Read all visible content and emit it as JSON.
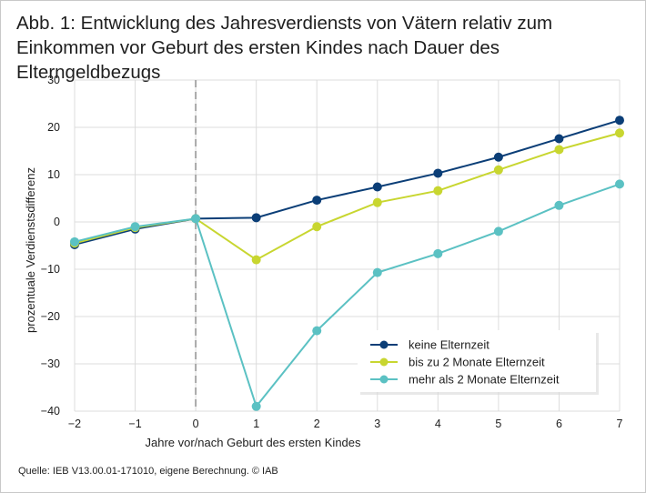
{
  "header": {
    "title": "Abb. 1: Entwicklung des Jahresverdiensts von Vätern relativ zum Einkommen vor Geburt des ersten Kindes nach Dauer des Elterngeldbezugs"
  },
  "footer": {
    "source": "Quelle: IEB V13.00.01-171010, eigene Berechnung. © IAB"
  },
  "chart_data": {
    "type": "line",
    "title": "Abb. 1: Entwicklung des Jahresverdiensts von Vätern relativ zum Einkommen vor Geburt des ersten Kindes nach Dauer des Elterngeldbezugs",
    "xlabel": "Jahre vor/nach Geburt des ersten Kindes",
    "ylabel": "prozentuale Verdienstsdifferenz",
    "x": [
      -2,
      -1,
      0,
      1,
      2,
      3,
      4,
      5,
      6,
      7
    ],
    "x_tick_labels": [
      "−2",
      "−1",
      "0",
      "1",
      "2",
      "3",
      "4",
      "5",
      "6",
      "7"
    ],
    "xlim": [
      -2,
      7
    ],
    "ylim": [
      -40,
      30
    ],
    "y_ticks": [
      30,
      20,
      10,
      0,
      -10,
      -20,
      -30,
      -40
    ],
    "y_tick_labels": [
      "30",
      "20",
      "10",
      "0",
      "−10",
      "−20",
      "−30",
      "−40"
    ],
    "grid": true,
    "reference_line_x": 0,
    "legend_position": "bottom-right",
    "series": [
      {
        "name": "keine Elternzeit",
        "color": "#0b3e77",
        "values": [
          -4.8,
          -1.5,
          0.7,
          0.9,
          4.6,
          7.4,
          10.3,
          13.7,
          17.6,
          21.5
        ]
      },
      {
        "name": "bis zu 2 Monate Elternzeit",
        "color": "#c8d630",
        "values": [
          -4.5,
          -1.2,
          0.7,
          -8.0,
          -1.0,
          4.1,
          6.6,
          11.0,
          15.3,
          18.8
        ]
      },
      {
        "name": "mehr als 2 Monate Elternzeit",
        "color": "#5bc1c3",
        "values": [
          -4.2,
          -1.0,
          0.7,
          -39.0,
          -23.0,
          -10.7,
          -6.7,
          -2.0,
          3.5,
          8.0
        ]
      }
    ]
  }
}
